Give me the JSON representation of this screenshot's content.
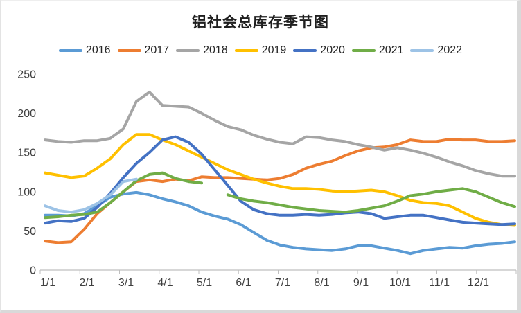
{
  "chart_data": {
    "type": "line",
    "title": "铝社会总库存季节图",
    "xlabel": "",
    "ylabel": "",
    "x_tick_labels": [
      "1/1",
      "2/1",
      "3/1",
      "4/1",
      "5/1",
      "6/1",
      "7/1",
      "8/1",
      "9/1",
      "10/1",
      "11/1",
      "12/1"
    ],
    "y_ticks": [
      0,
      50,
      100,
      150,
      200,
      250
    ],
    "ylim": [
      0,
      250
    ],
    "grid": false,
    "legend_position": "top",
    "axis_color": "#bfbfbf",
    "series": [
      {
        "name": "2016",
        "color": "#5B9BD5",
        "values": [
          70,
          70,
          69,
          72,
          82,
          93,
          97,
          99,
          96,
          91,
          87,
          82,
          74,
          69,
          65,
          58,
          48,
          38,
          32,
          29,
          27,
          26,
          25,
          27,
          31,
          31,
          28,
          25,
          21,
          25,
          27,
          29,
          28,
          31,
          33,
          34,
          36
        ]
      },
      {
        "name": "2017",
        "color": "#ED7D31",
        "values": [
          37,
          35,
          36,
          52,
          72,
          86,
          100,
          113,
          115,
          113,
          116,
          114,
          119,
          118,
          118,
          117,
          116,
          115,
          117,
          122,
          130,
          135,
          139,
          146,
          152,
          156,
          157,
          160,
          166,
          164,
          164,
          167,
          166,
          166,
          164,
          164,
          165
        ]
      },
      {
        "name": "2018",
        "color": "#A5A5A5",
        "values": [
          166,
          164,
          163,
          165,
          165,
          168,
          180,
          215,
          227,
          210,
          209,
          208,
          200,
          191,
          183,
          179,
          172,
          167,
          163,
          161,
          170,
          169,
          166,
          164,
          160,
          157,
          153,
          156,
          153,
          149,
          144,
          138,
          133,
          127,
          123,
          120,
          120
        ]
      },
      {
        "name": "2019",
        "color": "#FFC000",
        "values": [
          124,
          121,
          118,
          120,
          130,
          142,
          160,
          173,
          173,
          166,
          160,
          152,
          144,
          136,
          128,
          122,
          116,
          111,
          107,
          104,
          104,
          103,
          101,
          100,
          101,
          102,
          100,
          95,
          89,
          86,
          85,
          82,
          74,
          66,
          61,
          58,
          57
        ]
      },
      {
        "name": "2020",
        "color": "#4472C4",
        "values": [
          60,
          63,
          62,
          66,
          80,
          98,
          118,
          136,
          150,
          166,
          170,
          163,
          148,
          128,
          108,
          88,
          77,
          72,
          70,
          70,
          71,
          70,
          71,
          73,
          74,
          72,
          66,
          68,
          70,
          70,
          67,
          64,
          61,
          60,
          59,
          58,
          59
        ]
      },
      {
        "name": "2021",
        "color": "#70AD47",
        "values": [
          67,
          68,
          70,
          71,
          74,
          86,
          100,
          114,
          122,
          124,
          117,
          113,
          111,
          null,
          96,
          91,
          88,
          86,
          83,
          80,
          78,
          76,
          75,
          74,
          76,
          79,
          82,
          88,
          95,
          97,
          100,
          102,
          104,
          100,
          93,
          86,
          81
        ]
      },
      {
        "name": "2022",
        "color": "#9DC3E6",
        "values": [
          82,
          76,
          74,
          77,
          85,
          96,
          113,
          116,
          null,
          null,
          null,
          null,
          null,
          null,
          null,
          null,
          null,
          null,
          null,
          null,
          null,
          null,
          null,
          null,
          null,
          null,
          null,
          null,
          null,
          null,
          null,
          null,
          null,
          null,
          null,
          null,
          null
        ]
      }
    ]
  }
}
